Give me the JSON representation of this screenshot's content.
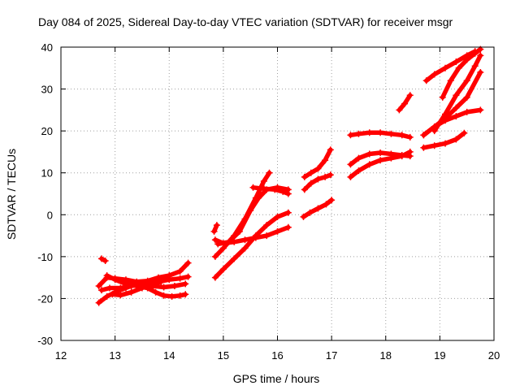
{
  "chart_data": {
    "type": "scatter",
    "title": "Day 084 of 2025, Sidereal Day-to-day VTEC variation (SDTVAR) for receiver msgr",
    "xlabel": "GPS time / hours",
    "ylabel": "SDTVAR / TECUs",
    "xlim": [
      12,
      20
    ],
    "ylim": [
      -30,
      40
    ],
    "xticks": [
      "12",
      "13",
      "14",
      "15",
      "16",
      "17",
      "18",
      "19",
      "20"
    ],
    "yticks": [
      "-30",
      "-20",
      "-10",
      "0",
      "10",
      "20",
      "30",
      "40"
    ],
    "grid": true,
    "marker": "plus",
    "color": "#ff0000",
    "series": [
      {
        "x": [
          12.75,
          12.82
        ],
        "y": [
          -10.5,
          -11
        ]
      },
      {
        "x": [
          12.7,
          12.85,
          13.0,
          13.2,
          13.4,
          13.6,
          13.8,
          14.0,
          14.2,
          14.35
        ],
        "y": [
          -17,
          -15,
          -15.2,
          -15.5,
          -16,
          -15.8,
          -15,
          -14.5,
          -13.5,
          -11.5
        ]
      },
      {
        "x": [
          12.7,
          12.85,
          13.0,
          13.2,
          13.4,
          13.6,
          13.8,
          14.0,
          14.2,
          14.35
        ],
        "y": [
          -21,
          -19.5,
          -18.5,
          -17.5,
          -16.5,
          -16.5,
          -16,
          -15.5,
          -15.2,
          -14.8
        ]
      },
      {
        "x": [
          12.75,
          12.9,
          13.1,
          13.3,
          13.5,
          13.7,
          13.9,
          14.1,
          14.3
        ],
        "y": [
          -18,
          -17.5,
          -17.5,
          -17,
          -16.5,
          -17,
          -17.3,
          -17,
          -16.5
        ]
      },
      {
        "x": [
          12.85,
          13.0,
          13.2,
          13.4,
          13.6,
          13.75,
          13.9,
          14.05,
          14.2,
          14.3
        ],
        "y": [
          -14.5,
          -15.5,
          -16.5,
          -17,
          -17.5,
          -18.5,
          -19.3,
          -19.5,
          -19.3,
          -19
        ]
      },
      {
        "x": [
          12.95,
          13.1,
          13.3,
          13.5,
          13.7,
          13.85
        ],
        "y": [
          -19,
          -19.2,
          -18.5,
          -17.5,
          -16.5,
          -16
        ]
      },
      {
        "x": [
          14.83,
          14.88
        ],
        "y": [
          -4,
          -2.5
        ]
      },
      {
        "x": [
          14.85,
          15.0,
          15.2,
          15.4,
          15.6,
          15.75,
          15.85
        ],
        "y": [
          -10,
          -8,
          -5,
          -1,
          4,
          8,
          10
        ]
      },
      {
        "x": [
          14.85,
          15.0,
          15.2,
          15.4,
          15.6,
          15.8,
          16.0,
          16.2
        ],
        "y": [
          -15,
          -13,
          -10.5,
          -8,
          -5,
          -2.5,
          -0.5,
          0.5
        ]
      },
      {
        "x": [
          14.85,
          15.0,
          15.2,
          15.4,
          15.6,
          15.8,
          16.0,
          16.2
        ],
        "y": [
          -6,
          -6.8,
          -6.5,
          -6,
          -5.5,
          -5,
          -4,
          -3
        ]
      },
      {
        "x": [
          14.9,
          15.1,
          15.3,
          15.5,
          15.65,
          15.8,
          16.0,
          16.2
        ],
        "y": [
          -7,
          -6.5,
          -4,
          1,
          4,
          6,
          6.5,
          6
        ]
      },
      {
        "x": [
          15.55,
          15.75,
          15.95,
          16.1,
          16.2
        ],
        "y": [
          6.5,
          6.2,
          6,
          5.5,
          5
        ]
      },
      {
        "x": [
          16.48,
          16.6,
          16.75,
          16.9,
          17.0
        ],
        "y": [
          -0.5,
          0.5,
          1.5,
          2.5,
          3.5
        ]
      },
      {
        "x": [
          16.5,
          16.62,
          16.75,
          16.88,
          16.98
        ],
        "y": [
          6,
          7.5,
          8.5,
          9,
          9.5
        ]
      },
      {
        "x": [
          16.5,
          16.62,
          16.75,
          16.88,
          16.98
        ],
        "y": [
          9,
          10,
          11,
          13,
          15.5
        ]
      },
      {
        "x": [
          17.35,
          17.5,
          17.7,
          17.9,
          18.1,
          18.3,
          18.45
        ],
        "y": [
          19,
          19.3,
          19.6,
          19.6,
          19.3,
          19,
          18.5
        ]
      },
      {
        "x": [
          17.35,
          17.5,
          17.7,
          17.9,
          18.1,
          18.3,
          18.45
        ],
        "y": [
          12,
          13.5,
          14.5,
          14.8,
          14.5,
          14.2,
          14
        ]
      },
      {
        "x": [
          17.35,
          17.5,
          17.7,
          17.9,
          18.1,
          18.3,
          18.45
        ],
        "y": [
          9,
          10.5,
          12,
          13,
          13.5,
          14,
          15
        ]
      },
      {
        "x": [
          18.25,
          18.35,
          18.45
        ],
        "y": [
          25,
          26.5,
          28.5
        ]
      },
      {
        "x": [
          18.75,
          18.9,
          19.1,
          19.3,
          19.5,
          19.65
        ],
        "y": [
          32,
          33.5,
          35,
          36.5,
          38,
          39
        ]
      },
      {
        "x": [
          18.7,
          18.9,
          19.1,
          19.3,
          19.5,
          19.75
        ],
        "y": [
          19,
          21,
          23,
          25.5,
          28,
          34
        ]
      },
      {
        "x": [
          18.7,
          18.9,
          19.1,
          19.3,
          19.5,
          19.75
        ],
        "y": [
          19,
          21,
          22.5,
          23.5,
          24.5,
          25
        ]
      },
      {
        "x": [
          18.7,
          18.9,
          19.1,
          19.3,
          19.45
        ],
        "y": [
          16,
          16.5,
          17,
          18,
          19.5
        ]
      },
      {
        "x": [
          19.05,
          19.2,
          19.35,
          19.5,
          19.65,
          19.75
        ],
        "y": [
          28,
          32,
          35,
          37,
          38.5,
          39.5
        ]
      },
      {
        "x": [
          18.9,
          19.1,
          19.3,
          19.5,
          19.65,
          19.75
        ],
        "y": [
          20,
          24,
          28.5,
          32,
          35.5,
          38
        ]
      }
    ]
  }
}
